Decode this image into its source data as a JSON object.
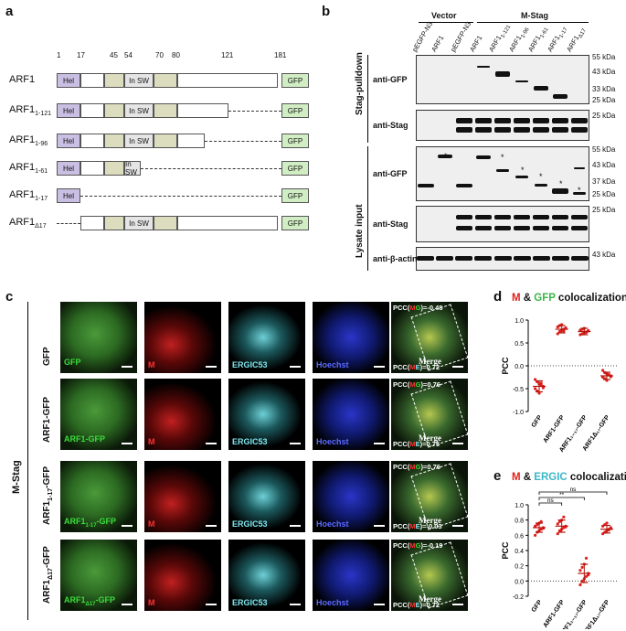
{
  "panel_labels": {
    "a": "a",
    "b": "b",
    "c": "c",
    "d": "d",
    "e": "e"
  },
  "panel_a": {
    "positions": [
      "1",
      "17",
      "45",
      "54",
      "70",
      "80",
      "121",
      "181"
    ],
    "rows": [
      {
        "name": "ARF1",
        "sub": ""
      },
      {
        "name": "ARF1",
        "sub": "1-121"
      },
      {
        "name": "ARF1",
        "sub": "1-96"
      },
      {
        "name": "ARF1",
        "sub": "1-61"
      },
      {
        "name": "ARF1",
        "sub": "1-17"
      },
      {
        "name": "ARF1",
        "sub": "Δ17"
      }
    ],
    "domains": {
      "hel": "Hel",
      "sw1": "SW1",
      "insw": "In SW",
      "sw2": "SW2",
      "gfp": "GFP"
    }
  },
  "panel_b": {
    "group_vector": "Vector",
    "group_mstag": "M-Stag",
    "lanes": [
      "pEGFP-N3",
      "ARF1",
      "pEGFP-N3",
      "ARF1",
      "ARF1",
      "ARF1",
      "ARF1",
      "ARF1",
      "ARF1"
    ],
    "lane_subs": [
      "",
      "",
      "",
      "",
      "1-121",
      "1-96",
      "1-61",
      "1-17",
      "Δ17"
    ],
    "section_pulldown": "Stag-pulldown",
    "section_lysate": "Lysate input",
    "antibodies": {
      "anti_gfp": "anti-GFP",
      "anti_stag": "anti-Stag",
      "anti_actin": "anti-β-actin"
    },
    "markers": {
      "pull_gfp": [
        "55 kDa",
        "43 kDa",
        "33 kDa",
        "25 kDa"
      ],
      "pull_stag": [
        "25 kDa"
      ],
      "lys_gfp": [
        "55 kDa",
        "43 kDa",
        "37 kDa",
        "25 kDa"
      ],
      "lys_stag": [
        "25 kDa"
      ],
      "lys_actin": [
        "43 kDa"
      ]
    },
    "star": "*"
  },
  "panel_c": {
    "side_label": "M-Stag",
    "rows": [
      {
        "name": "GFP",
        "sub": "",
        "suffix": "",
        "chan": "GFP",
        "pcc_mg": "-0.48",
        "pcc_me": "0.72"
      },
      {
        "name": "ARF1-GFP",
        "sub": "",
        "suffix": "",
        "chan": "ARF1-GFP",
        "pcc_mg": "0.76",
        "pcc_me": "0.75"
      },
      {
        "name": "ARF1",
        "sub": "1-17",
        "suffix": "-GFP",
        "chan": "ARF1",
        "pcc_mg": "0.76",
        "pcc_me": "-0.03"
      },
      {
        "name": "ARF1",
        "sub": "Δ17",
        "suffix": "-GFP",
        "chan": "ARF1",
        "pcc_mg": "-0.19",
        "pcc_me": "0.72"
      }
    ],
    "channels": {
      "m": "M",
      "ergic": "ERGIC53",
      "hoechst": "Hoechst",
      "merge": "Merge"
    },
    "pcc": {
      "prefix": "PCC(",
      "m": "M",
      "g": "G",
      "e": "E",
      "close": ")="
    }
  },
  "panel_d": {
    "title_m": "M",
    "title_amp": " & ",
    "title_gfp": "GFP",
    "title_rest": " colocalization",
    "ylabel": "PCC",
    "colors": {
      "red": "#e0201b",
      "green": "#3bb54a",
      "cyan": "#3ab8c8"
    }
  },
  "panel_e": {
    "title_m": "M",
    "title_amp": " & ",
    "title_ergic": "ERGIC",
    "title_rest": " colocalization",
    "ylabel": "PCC",
    "sig": [
      "ns",
      "**",
      "ns"
    ]
  },
  "chart_data": [
    {
      "type": "scatter",
      "title": "M & GFP colocalization",
      "ylabel": "PCC",
      "categories": [
        "GFP",
        "ARF1-GFP",
        "ARF1₁₋₁₇-GFP",
        "ARF1Δ₁₇-GFP"
      ],
      "ylim": [
        -1.0,
        1.0
      ],
      "yticks": [
        -1.0,
        -0.5,
        0.0,
        0.5,
        1.0
      ],
      "means": [
        -0.45,
        0.8,
        0.75,
        -0.22
      ],
      "sd": [
        0.12,
        0.08,
        0.07,
        0.08
      ],
      "points": [
        [
          -0.3,
          -0.35,
          -0.4,
          -0.42,
          -0.45,
          -0.5,
          -0.55,
          -0.6,
          -0.38,
          -0.48
        ],
        [
          0.7,
          0.75,
          0.78,
          0.8,
          0.82,
          0.85,
          0.88,
          0.9,
          0.76,
          0.83
        ],
        [
          0.68,
          0.7,
          0.72,
          0.74,
          0.76,
          0.78,
          0.8,
          0.82,
          0.73,
          0.77
        ],
        [
          -0.1,
          -0.15,
          -0.18,
          -0.2,
          -0.22,
          -0.25,
          -0.28,
          -0.32,
          -0.19,
          -0.24
        ]
      ]
    },
    {
      "type": "scatter",
      "title": "M & ERGIC colocalization",
      "ylabel": "PCC",
      "categories": [
        "GFP",
        "ARF1-GFP",
        "ARF1₁₋₁₇-GFP",
        "ARF1Δ₁₇-GFP"
      ],
      "ylim": [
        -0.2,
        1.0
      ],
      "yticks": [
        -0.2,
        0.0,
        0.2,
        0.4,
        0.6,
        0.8,
        1.0
      ],
      "means": [
        0.7,
        0.72,
        0.1,
        0.68
      ],
      "sd": [
        0.06,
        0.08,
        0.12,
        0.05
      ],
      "points": [
        [
          0.6,
          0.64,
          0.66,
          0.68,
          0.7,
          0.72,
          0.74,
          0.76,
          0.78,
          0.69
        ],
        [
          0.62,
          0.66,
          0.68,
          0.7,
          0.72,
          0.75,
          0.78,
          0.8,
          0.84,
          0.71
        ],
        [
          -0.05,
          0.0,
          0.03,
          0.06,
          0.1,
          0.14,
          0.18,
          0.22,
          0.3,
          0.08
        ],
        [
          0.62,
          0.64,
          0.66,
          0.68,
          0.7,
          0.72,
          0.74,
          0.76,
          0.67,
          0.69
        ]
      ]
    }
  ]
}
